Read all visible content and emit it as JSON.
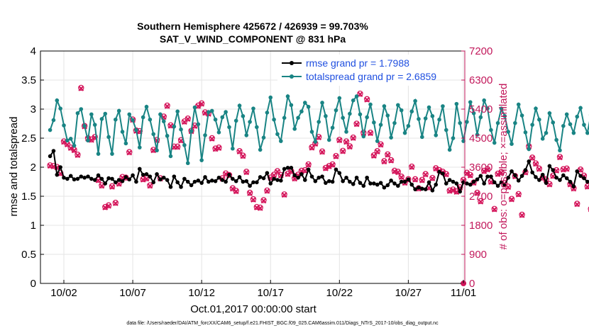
{
  "chart_data": {
    "type": "line",
    "title": "Southern Hemisphere 425672 / 426939 = 99.703%",
    "subtitle": "SAT_V_WIND_COMPONENT @ 831 hPa",
    "xlabel": "Oct.01,2017 00:00:00 start",
    "ylabel_left": "rmse and totalspread",
    "ylabel_right": "# of obs: o=possible; ×=assimilated",
    "footnote": "data file: /Users/raeder/DAI/ATM_forcXX/CAM6_setup/f.e21.FHIST_BGC.f09_025.CAM6assim.011/Diags_NTrS_2017-10/obs_diag_output.nc",
    "x_range": [
      0.3,
      31.1
    ],
    "ylim_left": [
      0,
      4
    ],
    "ylim_right": [
      0,
      7200
    ],
    "x_ticks": [
      {
        "x": 2,
        "label": "10/02"
      },
      {
        "x": 7,
        "label": "10/07"
      },
      {
        "x": 12,
        "label": "10/12"
      },
      {
        "x": 17,
        "label": "10/17"
      },
      {
        "x": 22,
        "label": "10/22"
      },
      {
        "x": 27,
        "label": "10/27"
      },
      {
        "x": 31,
        "label": "11/01"
      }
    ],
    "y_ticks_left": [
      "0",
      "0.5",
      "1",
      "1.5",
      "2",
      "2.5",
      "3",
      "3.5",
      "4"
    ],
    "y_ticks_right": [
      "0",
      "900",
      "1800",
      "2700",
      "3600",
      "4500",
      "5400",
      "6300",
      "7200"
    ],
    "colors": {
      "rmse": "#000000",
      "spread": "#198484",
      "obs": "#d4145a",
      "right_axis": "#c2185b",
      "legend_text": "#1f4fe0",
      "grid": "#e4e4e4"
    },
    "legend": [
      {
        "name": "rmse grand pr = 1.7988",
        "series": "rmse"
      },
      {
        "name": "totalspread grand pr = 2.6859",
        "series": "spread"
      }
    ],
    "x_start": 1,
    "x_step": 0.25,
    "series": [
      {
        "name": "rmse",
        "axis": "left",
        "values": [
          2.19,
          2.28,
          1.87,
          2.0,
          1.82,
          1.8,
          1.85,
          1.79,
          1.8,
          1.84,
          1.82,
          1.84,
          1.8,
          1.78,
          1.86,
          1.8,
          1.72,
          1.81,
          1.8,
          1.74,
          1.78,
          1.76,
          1.83,
          1.79,
          1.86,
          1.75,
          1.97,
          1.87,
          1.88,
          1.84,
          1.74,
          1.88,
          1.79,
          1.82,
          1.78,
          1.66,
          1.84,
          1.74,
          1.66,
          1.8,
          1.75,
          1.69,
          1.75,
          1.77,
          1.73,
          1.83,
          1.75,
          1.77,
          1.76,
          1.82,
          1.78,
          1.75,
          1.87,
          1.8,
          1.76,
          1.83,
          1.75,
          1.76,
          1.68,
          1.74,
          1.74,
          1.83,
          1.81,
          1.9,
          1.72,
          1.8,
          1.78,
          1.77,
          1.97,
          1.99,
          1.99,
          1.86,
          1.82,
          1.88,
          1.78,
          1.96,
          1.84,
          1.76,
          1.82,
          1.84,
          1.73,
          1.76,
          1.75,
          1.96,
          1.9,
          1.76,
          1.82,
          1.75,
          1.71,
          1.82,
          1.73,
          1.68,
          1.82,
          1.72,
          1.72,
          1.7,
          1.73,
          1.65,
          1.69,
          1.77,
          1.72,
          1.68,
          1.75,
          1.75,
          1.79,
          1.7,
          1.62,
          1.65,
          1.63,
          1.62,
          1.74,
          1.6,
          1.7,
          1.92,
          1.89,
          1.72,
          1.78,
          1.75,
          1.72,
          1.58,
          1.74,
          1.72,
          1.7,
          1.75,
          1.79,
          1.85,
          1.72,
          1.84,
          1.84,
          1.74,
          1.68,
          1.74,
          1.69,
          1.82,
          1.93,
          1.86,
          1.77,
          1.85,
          1.95,
          2.1,
          1.91,
          1.83,
          1.78,
          1.87,
          1.73,
          2.02,
          1.95,
          1.82,
          1.78,
          1.86,
          1.81,
          1.75,
          1.67,
          1.93,
          1.85,
          1.81,
          1.75,
          1.77,
          1.95,
          1.9,
          1.86,
          1.95,
          1.96,
          1.79,
          1.92,
          1.89,
          1.87,
          1.98,
          2.05,
          1.96,
          2.0,
          1.82,
          1.74,
          1.78,
          1.89,
          1.75,
          1.98,
          1.84,
          1.86,
          2.07,
          1.92,
          1.88,
          2.0,
          1.85,
          1.95,
          1.9,
          1.91,
          1.79,
          1.68
        ]
      },
      {
        "name": "totalspread",
        "axis": "left",
        "values": [
          2.64,
          2.81,
          3.15,
          3.01,
          2.72,
          2.46,
          2.49,
          2.37,
          2.93,
          3.0,
          2.71,
          2.46,
          2.91,
          2.73,
          2.23,
          2.83,
          2.92,
          2.52,
          2.23,
          2.82,
          2.97,
          2.61,
          2.41,
          2.91,
          2.81,
          2.64,
          2.34,
          2.86,
          3.04,
          2.82,
          2.57,
          2.29,
          2.91,
          2.79,
          2.54,
          2.19,
          2.7,
          2.96,
          2.65,
          2.38,
          2.07,
          2.62,
          3.03,
          2.74,
          2.12,
          2.55,
          2.95,
          2.97,
          2.82,
          2.6,
          2.86,
          2.95,
          2.69,
          2.32,
          2.8,
          3.06,
          2.88,
          2.55,
          2.78,
          3.01,
          2.69,
          2.3,
          2.51,
          2.94,
          3.2,
          2.82,
          2.57,
          2.45,
          2.85,
          3.22,
          3.07,
          2.66,
          2.85,
          2.96,
          3.11,
          3.04,
          2.61,
          2.44,
          2.78,
          3.11,
          2.88,
          2.47,
          2.68,
          2.98,
          3.19,
          2.85,
          2.61,
          2.92,
          3.15,
          3.22,
          2.91,
          2.53,
          2.86,
          3.08,
          2.77,
          2.45,
          2.73,
          3.05,
          2.89,
          2.51,
          2.76,
          3.07,
          2.98,
          2.59,
          2.71,
          2.96,
          3.14,
          2.83,
          2.52,
          2.84,
          3.03,
          2.88,
          2.55,
          2.82,
          3.05,
          2.64,
          2.3,
          2.5,
          3.09,
          2.76,
          2.45,
          2.78,
          3.12,
          2.93,
          2.56,
          2.86,
          3.15,
          3.01,
          2.64,
          2.42,
          2.76,
          3.01,
          2.88,
          2.61,
          2.4,
          2.76,
          3.08,
          2.89,
          2.6,
          2.31,
          2.73,
          3.01,
          2.82,
          2.49,
          2.59,
          2.93,
          2.77,
          2.47,
          2.29,
          2.71,
          2.91,
          2.74,
          2.59,
          2.87,
          3.02,
          2.73,
          2.59,
          2.9,
          2.97,
          2.66,
          2.44,
          2.71,
          3.0,
          2.83,
          2.58,
          2.75,
          3.03,
          2.83,
          2.58,
          2.87,
          3.06,
          2.95,
          2.68,
          2.4,
          2.82,
          3.16,
          3.0,
          2.7,
          2.54,
          2.88,
          3.21,
          3.0,
          2.58,
          2.72,
          3.06,
          3.1,
          2.82,
          2.55,
          2.76,
          3.08,
          2.81,
          2.51,
          2.93,
          3.14,
          3.12,
          2.82,
          2.56,
          2.65,
          2.97,
          3.08,
          2.8,
          2.6,
          2.86,
          3.04,
          3.16,
          2.89,
          2.57,
          2.75,
          3.03,
          3.09,
          2.79,
          2.58,
          2.86,
          3.16,
          3.24
        ]
      },
      {
        "name": "# obs assimilated",
        "axis": "right",
        "values": [
          3640,
          3620,
          3590,
          3400,
          4380,
          4300,
          4190,
          4120,
          3970,
          6040,
          4860,
          4480,
          4440,
          4520,
          3190,
          3020,
          2350,
          2400,
          2990,
          2480,
          3080,
          3280,
          3260,
          4050,
          5060,
          4720,
          4700,
          3210,
          3240,
          3020,
          4120,
          4430,
          3240,
          5150,
          5490,
          4880,
          4220,
          4220,
          4420,
          5000,
          5090,
          4710,
          4870,
          5490,
          5560,
          5280,
          5250,
          4480,
          4160,
          4190,
          3240,
          3390,
          3340,
          2930,
          2850,
          4080,
          3940,
          3440,
          2790,
          2590,
          2350,
          2330,
          2560,
          2860,
          3260,
          3350,
          3460,
          3340,
          2740,
          3380,
          3460,
          3240,
          3350,
          3470,
          3490,
          3670,
          4200,
          4320,
          4520,
          4070,
          3560,
          3620,
          3670,
          3930,
          4430,
          4090,
          4380,
          4230,
          4500,
          4930,
          5860,
          4650,
          5690,
          4650,
          3950,
          4080,
          4290,
          3770,
          3980,
          3800,
          3470,
          3440,
          3290,
          3110,
          3210,
          3600,
          3210,
          2930,
          3190,
          3370,
          2960,
          3250,
          3550,
          3490,
          3440,
          3370,
          2860,
          2890,
          2830,
          2960,
          3190,
          3410,
          3340,
          3110,
          2790,
          2530,
          3470,
          3520,
          3140,
          2290,
          3380,
          3430,
          3090,
          2980,
          2600,
          3310,
          2750,
          2110,
          3430,
          4230,
          3880,
          3700,
          3540,
          3260,
          3200,
          3060,
          3320,
          3490,
          3900,
          3520,
          3540,
          3060,
          2930,
          2450,
          3510,
          3320,
          2990,
          2290,
          3380,
          2100,
          3820,
          3600,
          3110,
          3020,
          2800,
          3220,
          3240,
          3390,
          3410,
          3040,
          3470,
          2980,
          3230,
          3640,
          2600,
          2620,
          2820,
          2880,
          3110,
          3250,
          3340,
          3580,
          3050,
          2940,
          2110,
          2900,
          3270,
          2710,
          2740
        ]
      },
      {
        "name": "# obs possible",
        "axis": "right",
        "values": [
          3660,
          3640,
          3610,
          3420,
          4400,
          4320,
          4210,
          4140,
          3990,
          6060,
          4880,
          4500,
          4460,
          4540,
          3210,
          3040,
          2370,
          2420,
          3010,
          2500,
          3100,
          3300,
          3280,
          4070,
          5080,
          4740,
          4720,
          3230,
          3260,
          3040,
          4140,
          4450,
          3260,
          5170,
          5510,
          4900,
          4240,
          4240,
          4440,
          5020,
          5110,
          4730,
          4890,
          5510,
          5580,
          5300,
          5270,
          4500,
          4180,
          4210,
          3260,
          3410,
          3360,
          2950,
          2870,
          4100,
          3960,
          3460,
          2810,
          2610,
          2370,
          2350,
          2580,
          2880,
          3280,
          3370,
          3480,
          3360,
          2760,
          3400,
          3480,
          3260,
          3370,
          3490,
          3510,
          3690,
          4220,
          4340,
          4540,
          4090,
          3580,
          3640,
          3690,
          3950,
          4450,
          4110,
          4400,
          4250,
          4520,
          4950,
          5880,
          4670,
          5710,
          4670,
          3970,
          4100,
          4310,
          3790,
          4000,
          3820,
          3490,
          3460,
          3310,
          3130,
          3230,
          3620,
          3230,
          2950,
          3210,
          3390,
          2980,
          3270,
          3570,
          3510,
          3460,
          3390,
          2880,
          2910,
          2850,
          2980,
          3210,
          3430,
          3360,
          3130,
          2810,
          2550,
          3490,
          3540,
          3160,
          2310,
          3400,
          3450,
          3110,
          3000,
          2620,
          3330,
          2770,
          2130,
          3450,
          4250,
          3900,
          3720,
          3560,
          3280,
          3220,
          3080,
          3340,
          3510,
          3920,
          3540,
          3560,
          3080,
          2950,
          2470,
          3530,
          3340,
          3010,
          2310,
          3400,
          2120,
          3840,
          3620,
          3130,
          3040,
          2820,
          3240,
          3260,
          3410,
          3430,
          3060,
          3490,
          3000,
          3250,
          3660,
          2620,
          2640,
          2840,
          2900,
          3130,
          3270,
          3360,
          3600,
          3070,
          2960,
          2130,
          2920,
          3290,
          2730,
          2760
        ]
      }
    ]
  }
}
